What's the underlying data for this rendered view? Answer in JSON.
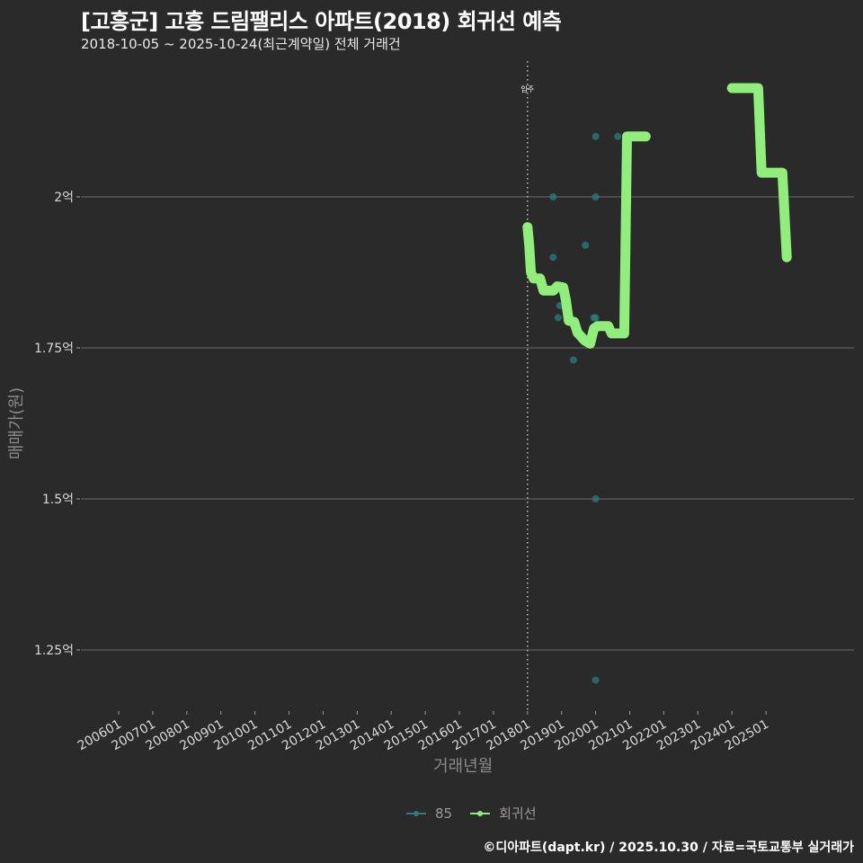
{
  "header": {
    "title": "[고흥군] 고흥 드림팰리스 아파트(2018) 회귀선 예측",
    "subtitle": "2018-10-05 ~ 2025-10-24(최근계약일) 전체 거래건"
  },
  "axes": {
    "ylabel": "매매가(원)",
    "xlabel": "거래년월",
    "yticks": [
      "2억",
      "1.75억",
      "1.5억",
      "1.25억"
    ],
    "xticks": [
      "200601",
      "200701",
      "200801",
      "200901",
      "201001",
      "201101",
      "201201",
      "201301",
      "201401",
      "201501",
      "201601",
      "201701",
      "201801",
      "201901",
      "202001",
      "202101",
      "202201",
      "202301",
      "202401",
      "202501"
    ]
  },
  "annotation": {
    "label": "입주",
    "x": "201801"
  },
  "legend": {
    "items": [
      {
        "label": "85",
        "color": "#2a7f7a"
      },
      {
        "label": "회귀선",
        "color": "#90ee7a"
      }
    ]
  },
  "caption": "©디아파트(dapt.kr) / 2025.10.30 / 자료=국토교통부 실거래가",
  "colors": {
    "background": "#2a2a2b",
    "grid": "#6a6a6a",
    "scatter": "#2a7f7a",
    "regression": "#90ee7a",
    "title": "#ffffff"
  },
  "chart_data": {
    "type": "scatter",
    "title": "[고흥군] 고흥 드림팰리스 아파트(2018) 회귀선 예측",
    "subtitle": "2018-10-05 ~ 2025-10-24(최근계약일) 전체 거래건",
    "xlabel": "거래년월",
    "ylabel": "매매가(원)",
    "x_range": [
      "200601",
      "202512"
    ],
    "ylim": [
      1.17,
      2.23
    ],
    "y_unit": "억",
    "grid": true,
    "legend_position": "bottom",
    "vline": {
      "x": "201801",
      "label": "입주",
      "style": "dotted"
    },
    "series": [
      {
        "name": "85",
        "type": "scatter",
        "color": "#2a7f7a",
        "points": [
          {
            "x": "2018.75",
            "y": 2.0
          },
          {
            "x": "2018.75",
            "y": 1.9
          },
          {
            "x": "2018.95",
            "y": 1.82
          },
          {
            "x": "2018.9",
            "y": 1.8
          },
          {
            "x": "2019.35",
            "y": 1.73
          },
          {
            "x": "2019.7",
            "y": 1.92
          },
          {
            "x": "2020.0",
            "y": 2.1
          },
          {
            "x": "2020.0",
            "y": 2.0
          },
          {
            "x": "2020.0",
            "y": 1.8
          },
          {
            "x": "2019.95",
            "y": 1.8
          },
          {
            "x": "2020.0",
            "y": 1.5
          },
          {
            "x": "2020.0",
            "y": 1.2
          },
          {
            "x": "2020.65",
            "y": 2.1
          }
        ]
      },
      {
        "name": "회귀선",
        "type": "line",
        "color": "#90ee7a",
        "segments": [
          [
            {
              "x": 2018.0,
              "y": 1.95
            },
            {
              "x": 2018.05,
              "y": 1.92
            },
            {
              "x": 2018.1,
              "y": 1.875
            },
            {
              "x": 2018.18,
              "y": 1.865
            },
            {
              "x": 2018.37,
              "y": 1.865
            },
            {
              "x": 2018.47,
              "y": 1.845
            },
            {
              "x": 2018.76,
              "y": 1.845
            },
            {
              "x": 2018.87,
              "y": 1.852
            },
            {
              "x": 2019.05,
              "y": 1.85
            },
            {
              "x": 2019.13,
              "y": 1.828
            },
            {
              "x": 2019.21,
              "y": 1.795
            },
            {
              "x": 2019.37,
              "y": 1.793
            },
            {
              "x": 2019.47,
              "y": 1.775
            },
            {
              "x": 2019.68,
              "y": 1.762
            },
            {
              "x": 2019.84,
              "y": 1.757
            },
            {
              "x": 2019.95,
              "y": 1.782
            },
            {
              "x": 2020.05,
              "y": 1.786
            },
            {
              "x": 2020.37,
              "y": 1.786
            },
            {
              "x": 2020.47,
              "y": 1.774
            },
            {
              "x": 2020.84,
              "y": 1.774
            },
            {
              "x": 2020.92,
              "y": 2.1
            },
            {
              "x": 2021.47,
              "y": 2.1
            }
          ],
          [
            {
              "x": 2024.0,
              "y": 2.18
            },
            {
              "x": 2024.77,
              "y": 2.18
            },
            {
              "x": 2024.87,
              "y": 2.04
            },
            {
              "x": 2025.48,
              "y": 2.04
            },
            {
              "x": 2025.61,
              "y": 1.9
            }
          ]
        ]
      }
    ]
  }
}
